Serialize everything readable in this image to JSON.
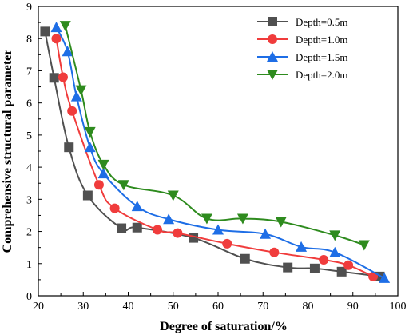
{
  "chart_data": {
    "type": "line",
    "title": "",
    "xlabel": "Degree of saturation/%",
    "ylabel": "Comprehensive structural parameter",
    "xlim": [
      20,
      100
    ],
    "ylim": [
      0,
      9
    ],
    "x_ticks": [
      "20",
      "30",
      "40",
      "50",
      "60",
      "70",
      "80",
      "90",
      "100"
    ],
    "y_ticks": [
      "0",
      "1",
      "2",
      "3",
      "4",
      "5",
      "6",
      "7",
      "8",
      "9"
    ],
    "grid": false,
    "legend_position": "top-right",
    "series": [
      {
        "name": "Depth=0.5m",
        "color": "#505050",
        "marker": "square",
        "x": [
          21.5,
          23.5,
          26.8,
          31.0,
          38.5,
          42.0,
          54.5,
          66.0,
          75.5,
          81.5,
          87.5,
          96.0
        ],
        "y": [
          8.22,
          6.78,
          4.62,
          3.12,
          2.1,
          2.12,
          1.8,
          1.15,
          0.88,
          0.85,
          0.75,
          0.6
        ]
      },
      {
        "name": "Depth=1.0m",
        "color": "#f03c3c",
        "marker": "circle",
        "x": [
          24.0,
          25.5,
          27.5,
          33.5,
          37.0,
          46.5,
          51.0,
          62.0,
          72.5,
          83.5,
          89.0,
          94.5
        ],
        "y": [
          8.0,
          6.8,
          5.75,
          3.45,
          2.72,
          2.05,
          1.95,
          1.62,
          1.35,
          1.12,
          0.95,
          0.6
        ]
      },
      {
        "name": "Depth=1.5m",
        "color": "#1e6ee6",
        "marker": "triangle-up",
        "x": [
          24.0,
          26.5,
          28.5,
          31.5,
          34.5,
          42.0,
          49.0,
          60.0,
          70.5,
          78.5,
          86.0,
          97.0
        ],
        "y": [
          8.35,
          7.6,
          6.2,
          4.62,
          3.8,
          2.78,
          2.38,
          2.05,
          1.92,
          1.52,
          1.35,
          0.55
        ]
      },
      {
        "name": "Depth=2.0m",
        "color": "#2e8b1e",
        "marker": "triangle-down",
        "x": [
          26.0,
          29.5,
          31.5,
          34.5,
          39.0,
          50.0,
          57.5,
          65.5,
          74.0,
          86.0,
          92.5
        ],
        "y": [
          8.4,
          6.4,
          5.1,
          4.08,
          3.45,
          3.12,
          2.4,
          2.4,
          2.3,
          1.88,
          1.58
        ]
      }
    ]
  }
}
